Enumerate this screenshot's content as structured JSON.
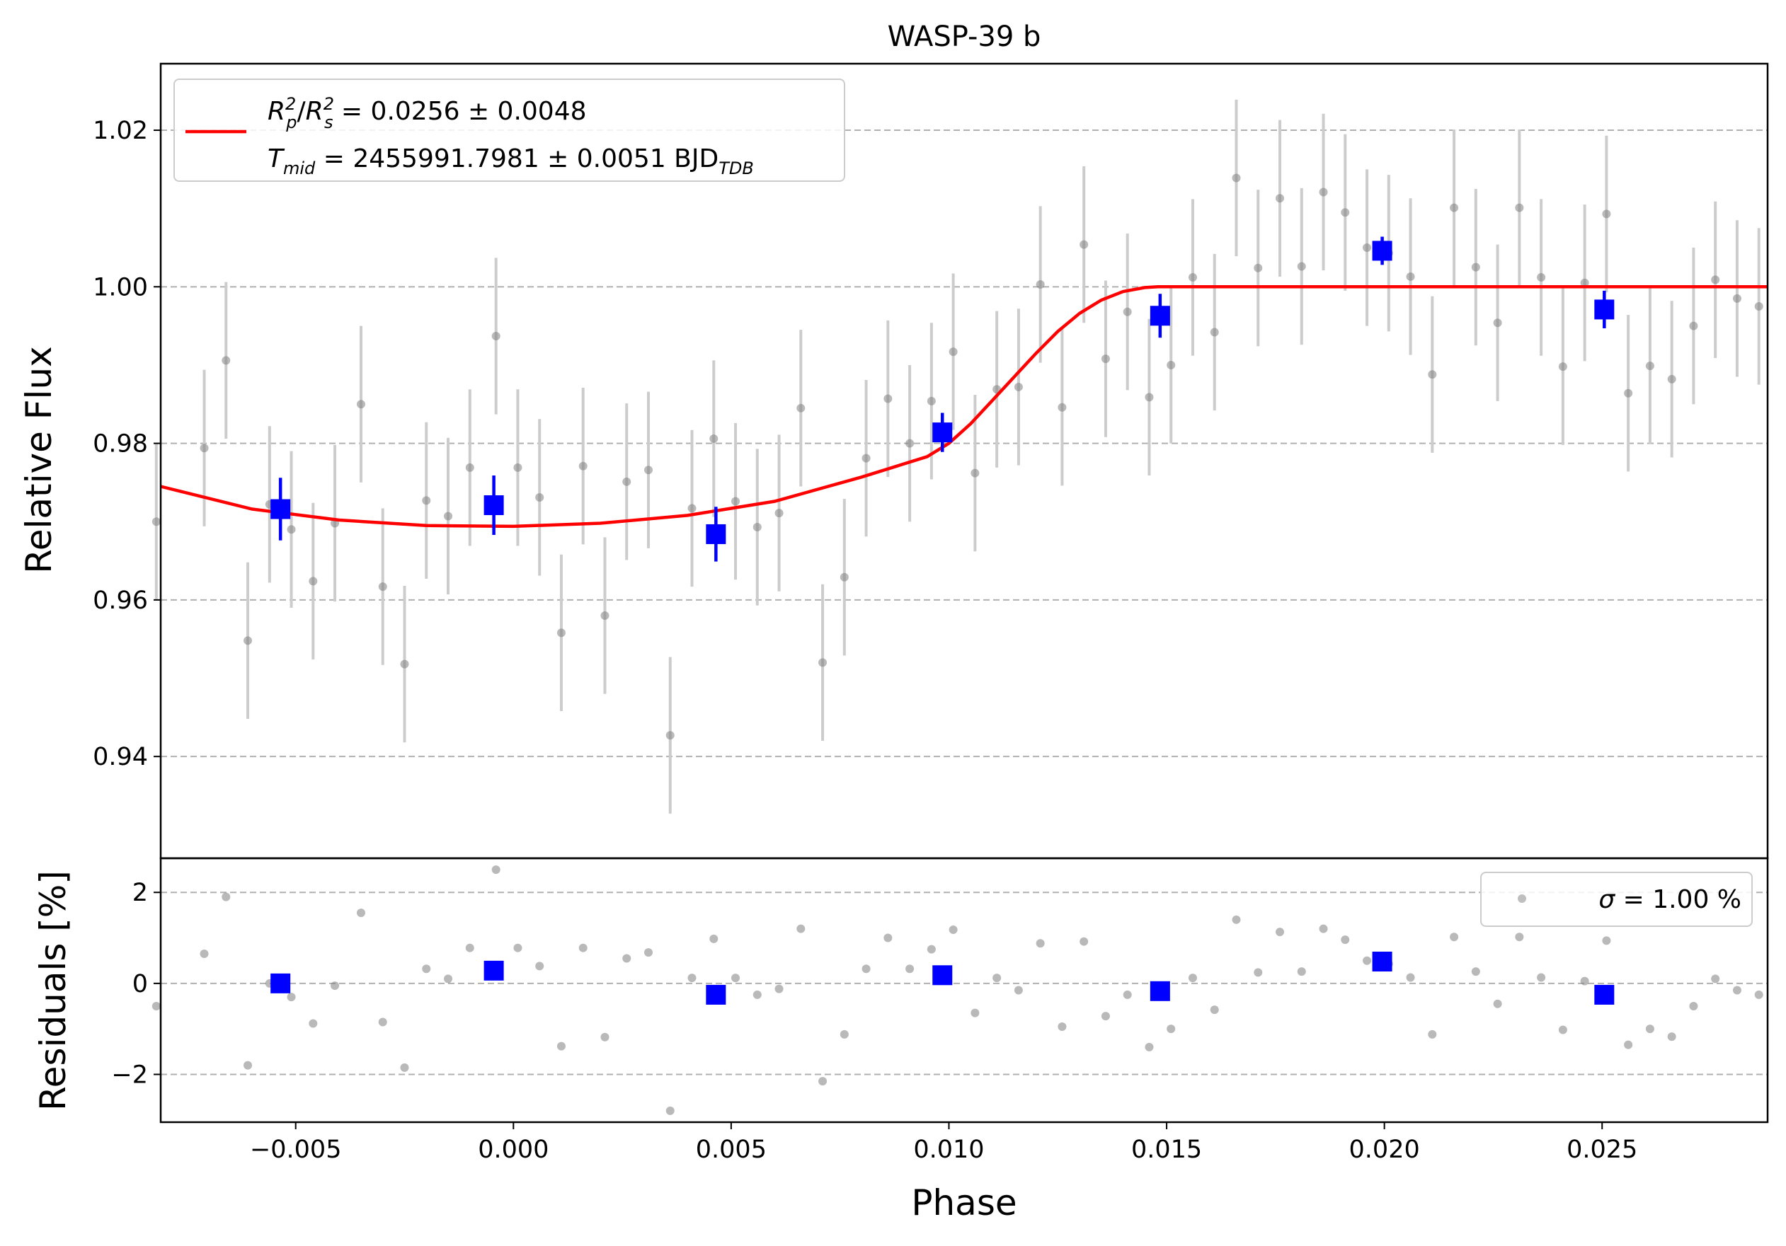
{
  "chart_data": [
    {
      "panel": "flux",
      "type": "scatter",
      "title": "WASP-39 b",
      "xlabel": "",
      "ylabel": "Relative Flux",
      "xlim": [
        -0.0081,
        0.0288
      ],
      "ylim": [
        0.927,
        1.0285
      ],
      "grid": "horizontal dashed",
      "yticks": [
        {
          "v": 0.94,
          "label": "0.94"
        },
        {
          "v": 0.96,
          "label": "0.96"
        },
        {
          "v": 0.98,
          "label": "0.98"
        },
        {
          "v": 1.0,
          "label": "1.00"
        },
        {
          "v": 1.02,
          "label": "1.02"
        }
      ],
      "legend": {
        "placement": "top-left",
        "line1": {
          "sym": "R",
          "sub1": "p",
          "sup1": "2",
          "slash": "/",
          "sym2": "R",
          "sub2": "s",
          "sup2": "2",
          "rest": " = 0.0256 ± 0.0048"
        },
        "line2": {
          "sym": "T",
          "sub": "mid",
          "rest": " = 2455991.7981 ± 0.0051 BJD",
          "rest_sub": "TDB"
        }
      },
      "colors": {
        "raw": "#808080",
        "errorbar": "#cccccc",
        "binned": "#0000ff",
        "model": "#ff0000"
      },
      "series": [
        {
          "kind": "raw",
          "x": [
            -0.0082,
            -0.0071,
            -0.0066,
            -0.0061,
            -0.0056,
            -0.0051,
            -0.0046,
            -0.0041,
            -0.0035,
            -0.003,
            -0.0025,
            -0.002,
            -0.0015,
            -0.001,
            -0.0004,
            0.0001,
            0.0006,
            0.0011,
            0.0016,
            0.0021,
            0.0026,
            0.0031,
            0.0036,
            0.0041,
            0.0046,
            0.0051,
            0.0056,
            0.0061,
            0.0066,
            0.0071,
            0.0076,
            0.0081,
            0.0086,
            0.0091,
            0.0096,
            0.0101,
            0.0106,
            0.0111,
            0.0116,
            0.0121,
            0.0126,
            0.0131,
            0.0136,
            0.0141,
            0.0146,
            0.0151,
            0.0156,
            0.0161,
            0.0166,
            0.0171,
            0.0176,
            0.0181,
            0.0186,
            0.0191,
            0.0196,
            0.0201,
            0.0206,
            0.0211,
            0.0216,
            0.0221,
            0.0226,
            0.0231,
            0.0236,
            0.0241,
            0.0246,
            0.0251,
            0.0256,
            0.0261,
            0.0266,
            0.0271,
            0.0276,
            0.0281,
            0.0286
          ],
          "y": [
            0.97,
            0.9794,
            0.9906,
            0.9548,
            0.9722,
            0.969,
            0.9624,
            0.9698,
            0.985,
            0.9617,
            0.9518,
            0.9727,
            0.9707,
            0.9769,
            0.9937,
            0.9769,
            0.9731,
            0.9558,
            0.9771,
            0.958,
            0.9751,
            0.9766,
            0.9427,
            0.9717,
            0.9806,
            0.9726,
            0.9693,
            0.9711,
            0.9845,
            0.952,
            0.9629,
            0.9781,
            0.9857,
            0.98,
            0.9854,
            0.9917,
            0.9762,
            0.9869,
            0.9872,
            1.0003,
            0.9846,
            1.0054,
            0.9908,
            0.9968,
            0.9859,
            0.99,
            1.0012,
            0.9942,
            1.0139,
            1.0024,
            1.0113,
            1.0026,
            1.0121,
            1.0095,
            1.005,
            1.0043,
            1.0013,
            0.9888,
            1.0101,
            1.0025,
            0.9954,
            1.0101,
            1.0012,
            0.9898,
            1.0005,
            1.0093,
            0.9864,
            0.9899,
            0.9882,
            0.995,
            1.0009,
            0.9985,
            0.9975
          ],
          "yerr": 0.01
        },
        {
          "kind": "binned",
          "x": [
            -0.00535,
            -0.00045,
            0.00465,
            0.00985,
            0.01485,
            0.01995,
            0.02505
          ],
          "y": [
            0.9716,
            0.9721,
            0.9684,
            0.9814,
            0.9963,
            1.0046,
            0.9971
          ],
          "yerr": [
            0.004,
            0.0038,
            0.0035,
            0.0025,
            0.0028,
            0.0018,
            0.0024
          ]
        },
        {
          "kind": "model",
          "x": [
            -0.0081,
            -0.006,
            -0.004,
            -0.002,
            0.0,
            0.002,
            0.004,
            0.006,
            0.008,
            0.0095,
            0.01,
            0.0105,
            0.011,
            0.0115,
            0.012,
            0.0125,
            0.013,
            0.0135,
            0.014,
            0.0145,
            0.0148,
            0.02,
            0.0288
          ],
          "y": [
            0.9745,
            0.9716,
            0.9702,
            0.9695,
            0.9694,
            0.9698,
            0.9708,
            0.9726,
            0.9757,
            0.9783,
            0.98,
            0.9825,
            0.9855,
            0.9885,
            0.9915,
            0.9943,
            0.9966,
            0.9983,
            0.9994,
            0.9999,
            1.0,
            1.0,
            1.0
          ]
        }
      ]
    },
    {
      "panel": "residuals",
      "type": "scatter",
      "title": "",
      "xlabel": "Phase",
      "ylabel": "Residuals [%]",
      "xlim": [
        -0.0081,
        0.0288
      ],
      "ylim": [
        -3.05,
        2.75
      ],
      "grid": "horizontal dashed",
      "xticks": [
        {
          "v": -0.005,
          "label": "−0.005"
        },
        {
          "v": 0.0,
          "label": "0.000"
        },
        {
          "v": 0.005,
          "label": "0.005"
        },
        {
          "v": 0.01,
          "label": "0.010"
        },
        {
          "v": 0.015,
          "label": "0.015"
        },
        {
          "v": 0.02,
          "label": "0.020"
        },
        {
          "v": 0.025,
          "label": "0.025"
        }
      ],
      "yticks": [
        {
          "v": -2,
          "label": "−2"
        },
        {
          "v": 0,
          "label": "0"
        },
        {
          "v": 2,
          "label": "2"
        }
      ],
      "legend": {
        "placement": "top-right",
        "sym": "σ",
        "rest": " = 1.00 %"
      },
      "series": [
        {
          "kind": "raw",
          "x": [
            -0.0082,
            -0.0071,
            -0.0066,
            -0.0061,
            -0.0056,
            -0.0051,
            -0.0046,
            -0.0041,
            -0.0035,
            -0.003,
            -0.0025,
            -0.002,
            -0.0015,
            -0.001,
            -0.0004,
            0.0001,
            0.0006,
            0.0011,
            0.0016,
            0.0021,
            0.0026,
            0.0031,
            0.0036,
            0.0041,
            0.0046,
            0.0051,
            0.0056,
            0.0061,
            0.0066,
            0.0071,
            0.0076,
            0.0081,
            0.0086,
            0.0091,
            0.0096,
            0.0101,
            0.0106,
            0.0111,
            0.0116,
            0.0121,
            0.0126,
            0.0131,
            0.0136,
            0.0141,
            0.0146,
            0.0151,
            0.0156,
            0.0161,
            0.0166,
            0.0171,
            0.0176,
            0.0181,
            0.0186,
            0.0191,
            0.0196,
            0.0201,
            0.0206,
            0.0211,
            0.0216,
            0.0221,
            0.0226,
            0.0231,
            0.0236,
            0.0241,
            0.0246,
            0.0251,
            0.0256,
            0.0261,
            0.0266,
            0.0271,
            0.0276,
            0.0281,
            0.0286
          ],
          "y": [
            -0.5,
            0.65,
            1.9,
            -1.8,
            0.0,
            -0.3,
            -0.88,
            -0.05,
            1.55,
            -0.85,
            -1.85,
            0.32,
            0.1,
            0.78,
            2.5,
            0.78,
            0.38,
            -1.38,
            0.78,
            -1.18,
            0.55,
            0.68,
            -2.8,
            0.12,
            0.98,
            0.12,
            -0.25,
            -0.12,
            1.2,
            -2.15,
            -1.12,
            0.32,
            1.0,
            0.32,
            0.75,
            1.18,
            -0.65,
            0.12,
            -0.15,
            0.88,
            -0.95,
            0.92,
            -0.72,
            -0.25,
            -1.4,
            -1.0,
            0.12,
            -0.58,
            1.4,
            0.24,
            1.13,
            0.26,
            1.2,
            0.96,
            0.5,
            0.43,
            0.13,
            -1.12,
            1.02,
            0.26,
            -0.45,
            1.02,
            0.13,
            -1.02,
            0.05,
            0.94,
            -1.35,
            -1.0,
            -1.17,
            -0.5,
            0.1,
            -0.15,
            -0.25
          ]
        },
        {
          "kind": "binned",
          "x": [
            -0.00535,
            -0.00045,
            0.00465,
            0.00985,
            0.01485,
            0.01995,
            0.02505
          ],
          "y": [
            0.0,
            0.28,
            -0.25,
            0.18,
            -0.17,
            0.48,
            -0.25
          ]
        }
      ]
    }
  ]
}
